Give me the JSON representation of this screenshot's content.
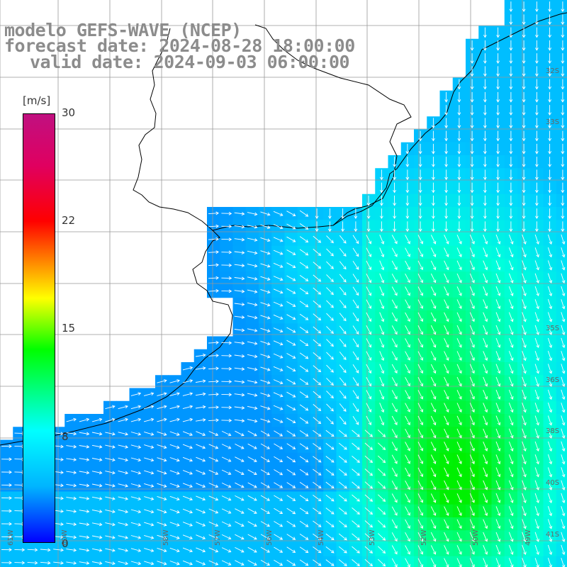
{
  "title": {
    "line1": "modelo GEFS-WAVE (NCEP)",
    "line2": "forecast date: 2024-08-28 18:00:00",
    "line3": "valid date: 2024-09-03 06:00:00"
  },
  "colorbar": {
    "unit": "[m/s]",
    "ticks": [
      "30",
      "22",
      "15",
      "8",
      "0"
    ],
    "tick_values": [
      30,
      22,
      15,
      8,
      0
    ],
    "colors": [
      "#0000ff",
      "#00b4ff",
      "#00ffff",
      "#00ff00",
      "#ffff00",
      "#ff8000",
      "#ff0000",
      "#c01080"
    ]
  },
  "lat_labels": [
    "32S",
    "33S",
    "35S",
    "36S",
    "38S",
    "40S",
    "41S"
  ],
  "lon_labels": [
    "61W",
    "60W",
    "58W",
    "57W",
    "56W",
    "54W",
    "53W",
    "52W",
    "50W",
    "49W"
  ],
  "map": {
    "land_color": "#ffffff",
    "coast_color": "#000000",
    "grid_color": "#999999",
    "arrow_color": "#ffffff"
  }
}
